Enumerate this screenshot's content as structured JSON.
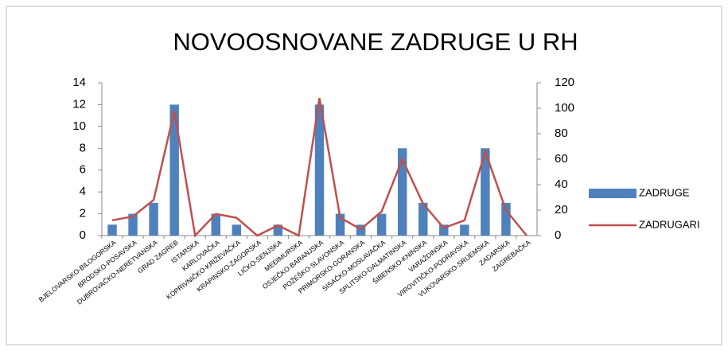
{
  "chart_data": {
    "type": "bar",
    "title": "NOVOOSNOVANE ZADRUGE U RH",
    "categories": [
      "BJELOVARSKO-BILOGORSKA",
      "BRODSKO-POSAVSKA",
      "DUBROVAČKO-NERETVANSKA",
      "GRAD ZAGREB",
      "ISTARSKA",
      "KARLOVAČKA",
      "KOPRIVNIČKO-KRIŽEVAČKA",
      "KRAPINSKO-ZAGORSKA",
      "LIČKO-SENJSKA",
      "MEĐIMURSKA",
      "OSJEČKO-BARANJSKA",
      "POŽEŠKO-SLAVONSKA",
      "PRIMORSKO-GORANSKA",
      "SISAČKO-MOSLAVAČKA",
      "SPLITSKO-DALMATINSKA",
      "ŠIBENSKO-KNINSKA",
      "VARAŽDINSKA",
      "VIROVITIČKO-PODRAVSKA",
      "VUKOVARSKO-SRIJEMSKA",
      "ZADARSKA",
      "ZAGREBAČKA"
    ],
    "series": [
      {
        "name": "ZADRUGE",
        "type": "bar",
        "color": "#4f81bd",
        "axis": "y",
        "values": [
          1,
          2,
          3,
          12,
          0,
          2,
          1,
          0,
          1,
          0,
          12,
          2,
          1,
          2,
          8,
          3,
          1,
          1,
          8,
          3,
          0
        ]
      },
      {
        "name": "ZADRUGARI",
        "type": "line",
        "color": "#c0504d",
        "axis": "y2",
        "values": [
          12,
          15,
          28,
          98,
          0,
          17,
          14,
          0,
          8,
          0,
          108,
          14,
          5,
          19,
          60,
          25,
          6,
          12,
          66,
          20,
          0
        ]
      }
    ],
    "ylim": [
      0,
      14
    ],
    "yticks": [
      0,
      2,
      4,
      6,
      8,
      10,
      12,
      14
    ],
    "y2lim": [
      0,
      120
    ],
    "y2ticks": [
      0,
      20,
      40,
      60,
      80,
      100,
      120
    ],
    "legend": "right"
  }
}
